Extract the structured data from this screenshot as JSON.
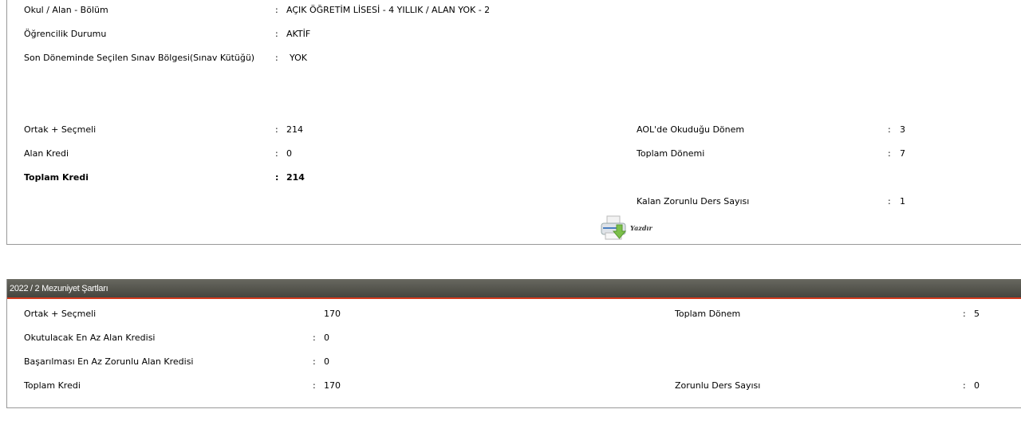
{
  "info": {
    "school": {
      "label": "Okul / Alan - Bölüm",
      "value": "AÇIK ÖĞRETİM LİSESİ - 4 YILLIK / ALAN YOK - 2"
    },
    "status": {
      "label": "Öğrencilik Durumu",
      "value": "AKTİF"
    },
    "exam_region": {
      "label": "Son Döneminde Seçilen Sınav Bölgesi(Sınav Kütüğü)",
      "value": "YOK"
    }
  },
  "credits": {
    "common": {
      "label": "Ortak + Seçmeli",
      "value": "214"
    },
    "field": {
      "label": "Alan Kredi",
      "value": "0"
    },
    "total": {
      "label": "Toplam Kredi",
      "value": "214"
    },
    "aol_term": {
      "label": "AOL'de Okuduğu Dönem",
      "value": "3"
    },
    "total_term": {
      "label": "Toplam Dönemi",
      "value": "7"
    },
    "remaining": {
      "label": "Kalan Zorunlu Ders Sayısı",
      "value": "1"
    }
  },
  "print": {
    "label": "Yazdır",
    "icon": "printer-icon"
  },
  "graduation": {
    "title": "2022 / 2 Mezuniyet Şartları",
    "common": {
      "label": "Ortak + Seçmeli",
      "value": "170"
    },
    "min_field": {
      "label": "Okutulacak En Az Alan Kredisi",
      "value": "0"
    },
    "min_required": {
      "label": "Başarılması En Az Zorunlu Alan Kredisi",
      "value": "0"
    },
    "total": {
      "label": "Toplam Kredi",
      "value": "170"
    },
    "total_term": {
      "label": "Toplam Dönem",
      "value": "5"
    },
    "required_count": {
      "label": "Zorunlu Ders Sayısı",
      "value": "0"
    }
  },
  "colors": {
    "header_bg": "#55554d",
    "header_accent": "#d23a1e"
  }
}
